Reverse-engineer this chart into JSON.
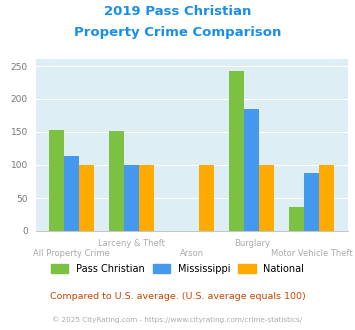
{
  "title_line1": "2019 Pass Christian",
  "title_line2": "Property Crime Comparison",
  "categories": [
    "All Property Crime",
    "Larceny & Theft",
    "Arson",
    "Burglary",
    "Motor Vehicle Theft"
  ],
  "xtick_labels_top": [
    "",
    "Larceny & Theft",
    "",
    "Burglary",
    ""
  ],
  "xtick_labels_bot": [
    "All Property Crime",
    "",
    "Arson",
    "",
    "Motor Vehicle Theft"
  ],
  "series": {
    "Pass Christian": [
      153,
      152,
      0,
      243,
      36
    ],
    "Mississippi": [
      113,
      100,
      0,
      185,
      88
    ],
    "National": [
      100,
      100,
      100,
      100,
      100
    ]
  },
  "colors": {
    "Pass Christian": "#7dc142",
    "Mississippi": "#4499ee",
    "National": "#ffaa00"
  },
  "ylim": [
    0,
    260
  ],
  "yticks": [
    0,
    50,
    100,
    150,
    200,
    250
  ],
  "background_color": "#ddeef4",
  "title_color": "#1a8fea",
  "axis_label_color": "#aaaaaa",
  "footer_text": "Compared to U.S. average. (U.S. average equals 100)",
  "footer_color": "#cc4400",
  "copyright_text": "© 2025 CityRating.com - https://www.cityrating.com/crime-statistics/",
  "copyright_color": "#aaaaaa"
}
